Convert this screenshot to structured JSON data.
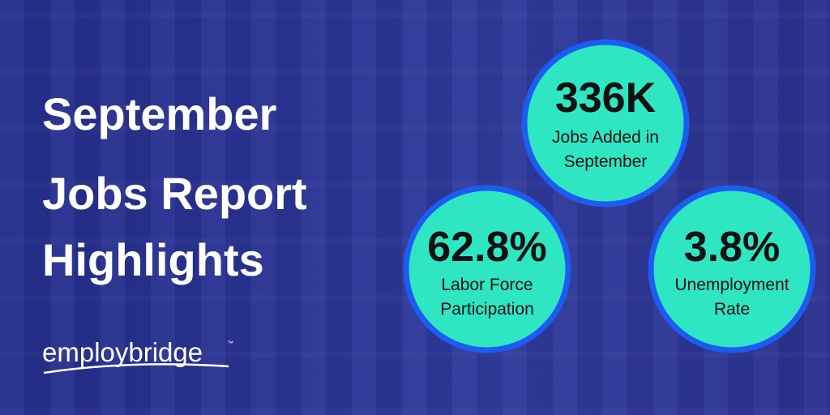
{
  "title": {
    "lines": [
      "September",
      "Jobs Report",
      "Highlights"
    ]
  },
  "stats": [
    {
      "value": "336K",
      "label_lines": [
        "Jobs Added in",
        "September"
      ]
    },
    {
      "value": "62.8%",
      "label_lines": [
        "Labor Force",
        "Participation"
      ]
    },
    {
      "value": "3.8%",
      "label_lines": [
        "Unemployment",
        "Rate"
      ]
    }
  ],
  "logo": {
    "text": "employbridge",
    "mark": "™"
  }
}
